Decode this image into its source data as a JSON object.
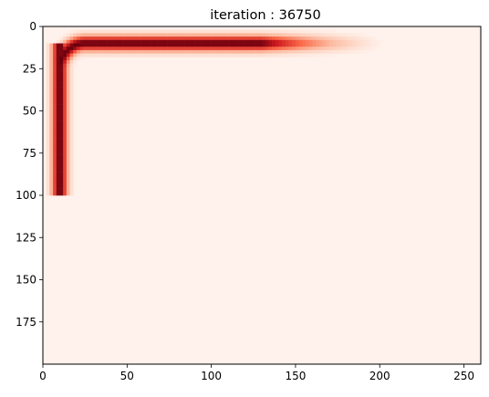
{
  "chart_data": {
    "type": "heatmap",
    "title": "iteration : 36750",
    "xlabel": "",
    "ylabel": "",
    "colormap": "Reds",
    "xlim": [
      0,
      260
    ],
    "ylim": [
      200,
      0
    ],
    "y_axis_inverted": true,
    "grid": false,
    "legend": "none",
    "x_ticks": [
      0,
      50,
      100,
      150,
      200,
      250
    ],
    "y_ticks": [
      0,
      25,
      50,
      75,
      100,
      125,
      150,
      175
    ],
    "field": {
      "vertical_segment": {
        "x_center": 10,
        "half_width": 7,
        "y_from": 10,
        "y_to": 100
      },
      "corner": {
        "x_center": 25,
        "y_center": 25,
        "radius": 15
      },
      "horizontal_segment": {
        "y_center": 10,
        "half_width": 7,
        "x_from": 25,
        "x_fade_start": 130,
        "x_fade_end": 210
      },
      "peak_intensity": 1.0,
      "background_intensity": 0.02
    },
    "colors": {
      "low": "#fff5f0",
      "mid_low": "#fcbba1",
      "mid": "#fb6a4a",
      "mid_high": "#cb181d",
      "high": "#67000d"
    }
  }
}
